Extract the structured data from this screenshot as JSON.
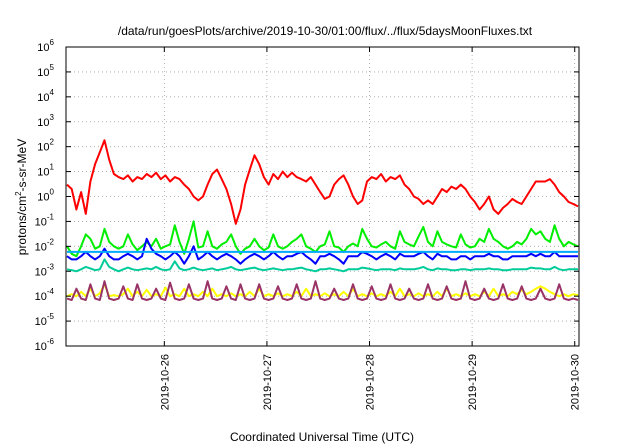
{
  "chart_data": {
    "type": "line",
    "title": "/data/run/goesPlots/archive/2019-10-30/01:00/flux/../flux/5daysMoonFluxes.txt",
    "xlabel": "Coordinated Universal Time (UTC)",
    "ylabel_html": "protons/cm²-s-sr-MeV",
    "ylabel_parts": {
      "pre": "protons/cm",
      "sup": "2",
      "post": "-s-sr-MeV"
    },
    "yscale": "log",
    "ylim": [
      1e-06,
      1000000.0
    ],
    "yticks": [
      {
        "mantissa": "10",
        "exp": "-6"
      },
      {
        "mantissa": "10",
        "exp": "-5"
      },
      {
        "mantissa": "10",
        "exp": "-4"
      },
      {
        "mantissa": "10",
        "exp": "-3"
      },
      {
        "mantissa": "10",
        "exp": "-2"
      },
      {
        "mantissa": "10",
        "exp": "-1"
      },
      {
        "mantissa": "10",
        "exp": "0"
      },
      {
        "mantissa": "10",
        "exp": "1"
      },
      {
        "mantissa": "10",
        "exp": "2"
      },
      {
        "mantissa": "10",
        "exp": "3"
      },
      {
        "mantissa": "10",
        "exp": "4"
      },
      {
        "mantissa": "10",
        "exp": "5"
      },
      {
        "mantissa": "10",
        "exp": "6"
      }
    ],
    "xrange_dates": [
      "2019-10-25T01:00",
      "2019-10-30T01:00"
    ],
    "xticks": [
      "2019-10-26",
      "2019-10-27",
      "2019-10-28",
      "2019-10-29",
      "2019-10-30"
    ],
    "grid": true,
    "series": [
      {
        "color": "#ff0000",
        "base": 3.0,
        "values": [
          3,
          2,
          0.3,
          1.5,
          0.2,
          4,
          20,
          60,
          180,
          30,
          8,
          6,
          5,
          7,
          4,
          6,
          5,
          8,
          6,
          9,
          5,
          7,
          4,
          6,
          5,
          3,
          2,
          1,
          0.7,
          1,
          3,
          8,
          12,
          5,
          2,
          0.5,
          0.08,
          0.3,
          3,
          12,
          45,
          20,
          6,
          3,
          8,
          5,
          10,
          6,
          9,
          6,
          5,
          4,
          6,
          3,
          1.5,
          0.8,
          1,
          3,
          5,
          7,
          3,
          1,
          0.5,
          0.7,
          4,
          6,
          5,
          8,
          4,
          6,
          5,
          7,
          3,
          2,
          1,
          0.8,
          0.5,
          0.7,
          0.5,
          1,
          2,
          1.5,
          2.5,
          2,
          3,
          2,
          1,
          0.6,
          0.3,
          0.5,
          1,
          0.3,
          0.2,
          0.35,
          0.5,
          0.8,
          0.6,
          0.5,
          1,
          2,
          4,
          4,
          4,
          5,
          3,
          1.5,
          1,
          0.6,
          0.5,
          0.4
        ]
      },
      {
        "color": "#00ee00",
        "base": 0.012,
        "values": [
          0.01,
          0.005,
          0.004,
          0.01,
          0.03,
          0.02,
          0.008,
          0.01,
          0.05,
          0.015,
          0.01,
          0.008,
          0.01,
          0.03,
          0.012,
          0.007,
          0.01,
          0.015,
          0.01,
          0.02,
          0.008,
          0.01,
          0.012,
          0.07,
          0.015,
          0.005,
          0.02,
          0.1,
          0.009,
          0.01,
          0.04,
          0.01,
          0.008,
          0.012,
          0.015,
          0.03,
          0.01,
          0.005,
          0.008,
          0.01,
          0.02,
          0.01,
          0.007,
          0.009,
          0.03,
          0.01,
          0.008,
          0.01,
          0.015,
          0.02,
          0.03,
          0.01,
          0.008,
          0.006,
          0.01,
          0.012,
          0.04,
          0.01,
          0.009,
          0.006,
          0.01,
          0.013,
          0.01,
          0.05,
          0.02,
          0.01,
          0.009,
          0.012,
          0.015,
          0.01,
          0.008,
          0.04,
          0.015,
          0.012,
          0.01,
          0.025,
          0.06,
          0.015,
          0.01,
          0.04,
          0.015,
          0.012,
          0.01,
          0.009,
          0.03,
          0.012,
          0.009,
          0.01,
          0.02,
          0.015,
          0.05,
          0.02,
          0.015,
          0.01,
          0.008,
          0.01,
          0.015,
          0.012,
          0.02,
          0.05,
          0.03,
          0.04,
          0.02,
          0.015,
          0.07,
          0.02,
          0.01,
          0.015,
          0.012,
          0.01
        ]
      },
      {
        "color": "#00cc99",
        "base": 0.0012,
        "values": [
          0.0012,
          0.0011,
          0.001,
          0.0012,
          0.0015,
          0.0013,
          0.0011,
          0.0012,
          0.003,
          0.0015,
          0.0012,
          0.001,
          0.0012,
          0.0014,
          0.0012,
          0.0011,
          0.0012,
          0.0013,
          0.0012,
          0.0015,
          0.0012,
          0.0011,
          0.0012,
          0.0025,
          0.0013,
          0.0011,
          0.0012,
          0.0014,
          0.0012,
          0.0011,
          0.0012,
          0.0013,
          0.0011,
          0.0012,
          0.0013,
          0.0015,
          0.0012,
          0.0011,
          0.0012,
          0.0013,
          0.0014,
          0.0012,
          0.0011,
          0.0012,
          0.0013,
          0.0012,
          0.0011,
          0.0012,
          0.0012,
          0.0013,
          0.0014,
          0.0012,
          0.0011,
          0.001,
          0.0012,
          0.0012,
          0.0013,
          0.0012,
          0.0011,
          0.001,
          0.0012,
          0.0012,
          0.0012,
          0.0014,
          0.0013,
          0.0012,
          0.0011,
          0.0012,
          0.0012,
          0.0012,
          0.0011,
          0.0013,
          0.0012,
          0.0012,
          0.0012,
          0.0013,
          0.0015,
          0.0012,
          0.0011,
          0.0013,
          0.0012,
          0.0012,
          0.0011,
          0.0011,
          0.0012,
          0.0012,
          0.0011,
          0.0012,
          0.0012,
          0.0012,
          0.0013,
          0.0012,
          0.0012,
          0.0011,
          0.0011,
          0.0012,
          0.0012,
          0.0012,
          0.0012,
          0.0014,
          0.0013,
          0.0013,
          0.0012,
          0.0012,
          0.0015,
          0.0012,
          0.0011,
          0.0012,
          0.0012,
          0.0012
        ]
      },
      {
        "color": "#0000ff",
        "base": 0.004,
        "values": [
          0.004,
          0.003,
          0.003,
          0.004,
          0.006,
          0.004,
          0.003,
          0.004,
          0.008,
          0.004,
          0.003,
          0.003,
          0.004,
          0.005,
          0.004,
          0.003,
          0.004,
          0.02,
          0.008,
          0.005,
          0.004,
          0.003,
          0.004,
          0.006,
          0.004,
          0.002,
          0.004,
          0.01,
          0.003,
          0.004,
          0.006,
          0.004,
          0.003,
          0.004,
          0.005,
          0.004,
          0.003,
          0.002,
          0.003,
          0.004,
          0.005,
          0.004,
          0.003,
          0.004,
          0.006,
          0.004,
          0.003,
          0.004,
          0.004,
          0.005,
          0.006,
          0.004,
          0.003,
          0.002,
          0.004,
          0.004,
          0.005,
          0.004,
          0.003,
          0.002,
          0.004,
          0.004,
          0.004,
          0.006,
          0.005,
          0.004,
          0.003,
          0.004,
          0.005,
          0.004,
          0.003,
          0.005,
          0.004,
          0.004,
          0.004,
          0.005,
          0.006,
          0.004,
          0.003,
          0.005,
          0.004,
          0.004,
          0.003,
          0.003,
          0.004,
          0.004,
          0.003,
          0.004,
          0.004,
          0.004,
          0.005,
          0.004,
          0.004,
          0.003,
          0.003,
          0.004,
          0.004,
          0.004,
          0.004,
          0.005,
          0.004,
          0.005,
          0.004,
          0.004,
          0.006,
          0.004,
          0.004,
          0.004,
          0.004,
          0.004
        ]
      },
      {
        "color": "#00aaff",
        "base": 0.006,
        "values": [
          0.006,
          0.006,
          0.006,
          0.006,
          0.006,
          0.006,
          0.006,
          0.006,
          0.006,
          0.006,
          0.006,
          0.006,
          0.006,
          0.006,
          0.006,
          0.006,
          0.006,
          0.006,
          0.006,
          0.006,
          0.006,
          0.006,
          0.006,
          0.006,
          0.006,
          0.006,
          0.006,
          0.006,
          0.006,
          0.006,
          0.006,
          0.006,
          0.006,
          0.006,
          0.006,
          0.006,
          0.006,
          0.006,
          0.006,
          0.006,
          0.006,
          0.006,
          0.006,
          0.006,
          0.006,
          0.006,
          0.006,
          0.006,
          0.006,
          0.006,
          0.006,
          0.006,
          0.006,
          0.006,
          0.006,
          0.006,
          0.006,
          0.006,
          0.006,
          0.006,
          0.006,
          0.006,
          0.006,
          0.006,
          0.006,
          0.006,
          0.006,
          0.006,
          0.006,
          0.006,
          0.006,
          0.006,
          0.006,
          0.006,
          0.006,
          0.006,
          0.006,
          0.006,
          0.006,
          0.006,
          0.006,
          0.006,
          0.006,
          0.006,
          0.006,
          0.006,
          0.006,
          0.006,
          0.006,
          0.006,
          0.006,
          0.006,
          0.006,
          0.006,
          0.006,
          0.006,
          0.006,
          0.006,
          0.006,
          0.006,
          0.006,
          0.006,
          0.006,
          0.006,
          0.006,
          0.006,
          0.006,
          0.006,
          0.006,
          0.006
        ]
      },
      {
        "color": "#ffff00",
        "base": 0.00012,
        "values": [
          0.0001,
          0.00012,
          0.0001,
          0.00015,
          0.0001,
          0.0002,
          0.0001,
          0.00013,
          0.0003,
          0.0001,
          0.00011,
          0.0001,
          0.00012,
          0.0002,
          0.0001,
          0.00015,
          0.0001,
          0.00018,
          0.0001,
          0.00012,
          0.0001,
          0.00022,
          0.0001,
          0.00012,
          0.0001,
          0.0002,
          0.0001,
          0.00012,
          0.0001,
          0.00015,
          0.0001,
          0.0002,
          0.0001,
          0.00012,
          0.0001,
          0.00013,
          0.0001,
          0.00012,
          0.0001,
          0.00015,
          0.0001,
          0.0002,
          0.0001,
          0.00012,
          0.0001,
          0.00013,
          0.0001,
          0.00012,
          0.0001,
          0.00015,
          0.0001,
          0.0002,
          0.0001,
          0.00012,
          0.0001,
          0.00013,
          0.0001,
          0.00012,
          0.0001,
          0.00015,
          0.0001,
          0.0002,
          0.0001,
          0.00012,
          0.0001,
          0.00013,
          0.0001,
          0.00012,
          0.0001,
          0.00015,
          0.0001,
          0.0002,
          0.0001,
          0.00012,
          0.0001,
          0.00013,
          0.0001,
          0.00012,
          0.0001,
          0.00015,
          0.0001,
          0.0002,
          0.0001,
          0.00012,
          0.0001,
          0.00013,
          0.0001,
          0.00012,
          0.0001,
          0.00015,
          0.0001,
          0.0002,
          0.0001,
          0.00012,
          0.0001,
          0.00015,
          0.00012,
          0.00018,
          0.00012,
          0.00015,
          0.0002,
          0.00025,
          0.0002,
          0.00015,
          0.00012,
          0.0001,
          0.00012,
          0.0001,
          0.00012,
          0.00011
        ]
      },
      {
        "color": "#993366",
        "base": 8e-05,
        "values": [
          8e-05,
          7e-05,
          0.0002,
          8e-05,
          7e-05,
          0.0003,
          8e-05,
          7e-05,
          0.0004,
          8e-05,
          7e-05,
          8e-05,
          0.00025,
          8e-05,
          7e-05,
          0.0003,
          8e-05,
          7e-05,
          8e-05,
          0.0002,
          8e-05,
          7e-05,
          0.00035,
          8e-05,
          7e-05,
          8e-05,
          0.0003,
          8e-05,
          7e-05,
          8e-05,
          0.0004,
          8e-05,
          7e-05,
          8e-05,
          0.00025,
          8e-05,
          7e-05,
          0.0003,
          8e-05,
          7e-05,
          8e-05,
          0.0003,
          8e-05,
          7e-05,
          8e-05,
          0.00025,
          8e-05,
          7e-05,
          8e-05,
          0.0003,
          8e-05,
          7e-05,
          8e-05,
          0.0004,
          8e-05,
          7e-05,
          8e-05,
          0.0002,
          8e-05,
          7e-05,
          8e-05,
          0.0003,
          8e-05,
          7e-05,
          8e-05,
          0.00025,
          8e-05,
          7e-05,
          8e-05,
          0.0003,
          8e-05,
          7e-05,
          8e-05,
          0.0002,
          8e-05,
          7e-05,
          8e-05,
          0.0003,
          8e-05,
          7e-05,
          8e-05,
          0.00025,
          8e-05,
          7e-05,
          8e-05,
          0.0004,
          8e-05,
          7e-05,
          8e-05,
          0.0002,
          8e-05,
          7e-05,
          8e-05,
          0.0003,
          8e-05,
          7e-05,
          8e-05,
          0.00025,
          8e-05,
          7e-05,
          8e-05,
          0.0002,
          8e-05,
          7e-05,
          8e-05,
          0.0003,
          8e-05,
          7e-05,
          8e-05,
          7e-05
        ]
      }
    ]
  }
}
